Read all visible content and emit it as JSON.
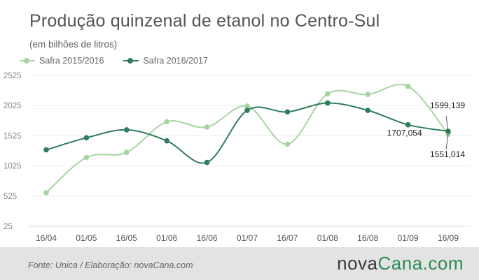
{
  "title": "Produção quinzenal de etanol no Centro-Sul",
  "subtitle": "(em bilhões de litros)",
  "footer": {
    "source": "Fonte:  Unica  / Elaboração:  novaCana.com",
    "brand_part1": "nova",
    "brand_part2": "Cana",
    "brand_part3": ".com"
  },
  "colors": {
    "series_2015": "#a8d4a4",
    "series_2016": "#2e7d5b",
    "grid": "#eeeeee",
    "axis_text": "#555555",
    "footer_bg": "#e3e3e3"
  },
  "chart_data": {
    "type": "line",
    "curve": "smooth",
    "categories": [
      "16/04",
      "01/05",
      "16/05",
      "01/06",
      "16/06",
      "01/07",
      "16/07",
      "01/08",
      "16/08",
      "01/09",
      "16/09"
    ],
    "ylim": [
      25,
      2525
    ],
    "yticks": [
      25,
      525,
      1025,
      1525,
      2025,
      2525
    ],
    "ytick_labels": [
      "25",
      "525",
      "1025",
      "1525",
      "2025",
      "2525"
    ],
    "grid": true,
    "legend": "top-left",
    "series": [
      {
        "name": "Safra 2015/2016",
        "color": "#a8d4a4",
        "values": [
          581,
          1165,
          1248,
          1756,
          1668,
          2016,
          1385,
          2220,
          2210,
          2345,
          1551
        ]
      },
      {
        "name": "Safra 2016/2017",
        "color": "#2e7d5b",
        "values": [
          1291,
          1491,
          1623,
          1441,
          1083,
          1946,
          1920,
          2068,
          1946,
          1707,
          1599
        ]
      }
    ],
    "annotations": [
      {
        "text": "1599,139",
        "category": "16/09",
        "series": "Safra 2016/2017"
      },
      {
        "text": "1707,054",
        "category": "01/09",
        "series": "Safra 2016/2017"
      },
      {
        "text": "1551,014",
        "category": "16/09",
        "series": "Safra 2015/2016"
      }
    ]
  }
}
